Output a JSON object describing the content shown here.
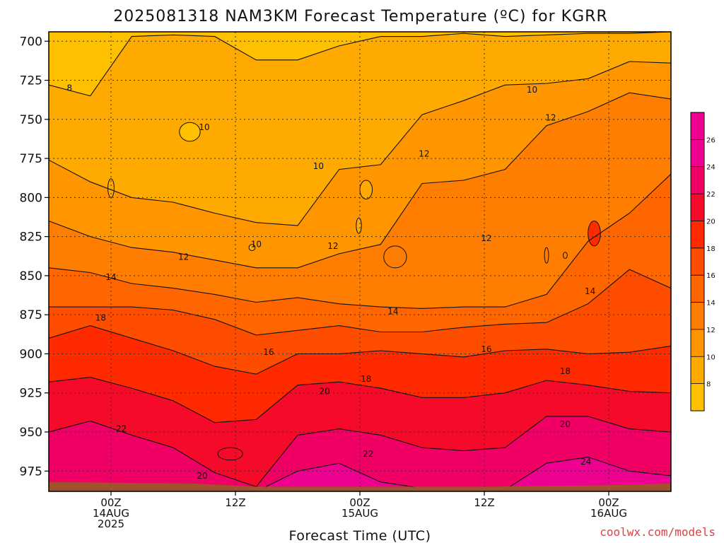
{
  "title": "2025081318 NAM3KM Forecast Temperature (ºC) for KGRR",
  "credit": "coolwx.com/models",
  "colors": {
    "bands": [
      "#ffc000",
      "#ffaa00",
      "#ff9600",
      "#ff7d00",
      "#ff6600",
      "#ff4d00",
      "#ff2a00",
      "#f50a2a",
      "#f00064",
      "#ee0090"
    ],
    "ground": "#a0522d"
  },
  "chart_data": {
    "type": "heatmap",
    "subtype": "time-pressure contour",
    "title": "2025081318 NAM3KM Forecast Temperature (ºC) for KGRR",
    "xlabel": "Forecast Time (UTC)",
    "ylabel": "",
    "x_range_hours": [
      -6,
      54
    ],
    "y_range_hPa": [
      694,
      988
    ],
    "yticks": [
      700,
      725,
      750,
      775,
      800,
      825,
      850,
      875,
      900,
      925,
      950,
      975
    ],
    "xticks": [
      {
        "hour": 0,
        "lines": [
          "00Z",
          "14AUG",
          "2025"
        ]
      },
      {
        "hour": 12,
        "lines": [
          "12Z"
        ]
      },
      {
        "hour": 24,
        "lines": [
          "00Z",
          "15AUG"
        ]
      },
      {
        "hour": 36,
        "lines": [
          "12Z"
        ]
      },
      {
        "hour": 48,
        "lines": [
          "00Z",
          "16AUG"
        ]
      }
    ],
    "grid": true,
    "colorbar": {
      "position": "right",
      "min": 6,
      "max": 28,
      "step": 2,
      "ticks": [
        8,
        10,
        12,
        14,
        16,
        18,
        20,
        22,
        24,
        26
      ]
    },
    "levels": [
      8,
      10,
      12,
      14,
      16,
      18,
      20,
      22,
      24
    ],
    "columns": [
      {
        "hour": -6,
        "p": [
          728,
          776,
          815,
          845,
          870,
          890,
          918,
          950
        ]
      },
      {
        "hour": -2,
        "p": [
          735,
          790,
          825,
          848,
          870,
          882,
          915,
          943
        ]
      },
      {
        "hour": 2,
        "p": [
          697,
          800,
          832,
          855,
          870,
          890,
          922,
          952
        ]
      },
      {
        "hour": 6,
        "p": [
          696,
          803,
          835,
          858,
          872,
          898,
          930,
          960
        ]
      },
      {
        "hour": 10,
        "p": [
          697,
          810,
          840,
          862,
          878,
          908,
          944,
          976
        ]
      },
      {
        "hour": 14,
        "p": [
          712,
          816,
          845,
          867,
          888,
          913,
          942,
          985,
          988
        ]
      },
      {
        "hour": 18,
        "p": [
          712,
          818,
          845,
          864,
          885,
          900,
          920,
          952,
          975
        ]
      },
      {
        "hour": 22,
        "p": [
          703,
          782,
          836,
          868,
          882,
          900,
          918,
          948,
          970
        ]
      },
      {
        "hour": 26,
        "p": [
          697,
          779,
          830,
          870,
          886,
          898,
          922,
          952,
          982
        ]
      },
      {
        "hour": 30,
        "p": [
          697,
          747,
          791,
          871,
          886,
          900,
          928,
          960,
          986
        ]
      },
      {
        "hour": 34,
        "p": [
          695,
          738,
          789,
          870,
          883,
          902,
          928,
          962,
          987
        ]
      },
      {
        "hour": 38,
        "p": [
          697,
          728,
          782,
          870,
          881,
          898,
          925,
          960,
          987,
          988
        ]
      },
      {
        "hour": 42,
        "p": [
          696,
          727,
          754,
          862,
          880,
          897,
          917,
          940,
          970,
          983
        ]
      },
      {
        "hour": 46,
        "p": [
          695,
          724,
          745,
          828,
          868,
          900,
          920,
          940,
          966,
          978
        ]
      },
      {
        "hour": 50,
        "p": [
          695,
          713,
          733,
          810,
          846,
          899,
          924,
          948,
          975,
          985
        ]
      },
      {
        "hour": 54,
        "p": [
          694,
          714,
          737,
          785,
          858,
          895,
          925,
          950,
          978,
          988
        ]
      }
    ],
    "contour_labels": [
      {
        "value": "8",
        "hour": -4.0,
        "p": 730
      },
      {
        "value": "10",
        "hour": 9.0,
        "p": 755
      },
      {
        "value": "10",
        "hour": 20.0,
        "p": 780
      },
      {
        "value": "10",
        "hour": 14.0,
        "p": 830
      },
      {
        "value": "10",
        "hour": 40.6,
        "p": 731
      },
      {
        "value": "12",
        "hour": 7.0,
        "p": 838
      },
      {
        "value": "12",
        "hour": 21.4,
        "p": 831
      },
      {
        "value": "12",
        "hour": 30.2,
        "p": 772
      },
      {
        "value": "12",
        "hour": 36.2,
        "p": 826
      },
      {
        "value": "12",
        "hour": 42.4,
        "p": 749
      },
      {
        "value": "14",
        "hour": 0.0,
        "p": 851
      },
      {
        "value": "14",
        "hour": 27.2,
        "p": 873
      },
      {
        "value": "14",
        "hour": 46.2,
        "p": 860
      },
      {
        "value": "16",
        "hour": 15.2,
        "p": 899
      },
      {
        "value": "16",
        "hour": 36.2,
        "p": 897
      },
      {
        "value": "18",
        "hour": -1.0,
        "p": 877
      },
      {
        "value": "18",
        "hour": 24.6,
        "p": 916
      },
      {
        "value": "18",
        "hour": 43.8,
        "p": 911
      },
      {
        "value": "20",
        "hour": 20.6,
        "p": 924
      },
      {
        "value": "20",
        "hour": 8.8,
        "p": 978
      },
      {
        "value": "20",
        "hour": 43.8,
        "p": 945
      },
      {
        "value": "22",
        "hour": 1.0,
        "p": 948
      },
      {
        "value": "22",
        "hour": 24.8,
        "p": 964
      },
      {
        "value": "24",
        "hour": 45.8,
        "p": 969
      }
    ],
    "islands": [
      {
        "hour": 7.6,
        "p": 758,
        "rx_h": 1.0,
        "ry_p": 6,
        "band": 0
      },
      {
        "hour": 0.0,
        "p": 794,
        "rx_h": 0.3,
        "ry_p": 6,
        "band": 1
      },
      {
        "hour": 13.6,
        "p": 832,
        "rx_h": 0.3,
        "ry_p": 2,
        "band": 1
      },
      {
        "hour": 24.6,
        "p": 795,
        "rx_h": 0.6,
        "ry_p": 6,
        "band": 1
      },
      {
        "hour": 23.9,
        "p": 818,
        "rx_h": 0.25,
        "ry_p": 5,
        "band": 1
      },
      {
        "hour": 27.4,
        "p": 838,
        "rx_h": 1.1,
        "ry_p": 7,
        "band": 3
      },
      {
        "hour": 42.0,
        "p": 837,
        "rx_h": 0.2,
        "ry_p": 5,
        "band": 3
      },
      {
        "hour": 43.8,
        "p": 837,
        "rx_h": 0.2,
        "ry_p": 2,
        "band": 3
      },
      {
        "hour": 46.6,
        "p": 823,
        "rx_h": 0.6,
        "ry_p": 8,
        "band": 6
      },
      {
        "hour": 11.5,
        "p": 964,
        "rx_h": 1.2,
        "ry_p": 4,
        "band": 7
      }
    ],
    "ground": [
      {
        "hour": -6,
        "p": 982
      },
      {
        "hour": 8,
        "p": 983
      },
      {
        "hour": 14,
        "p": 985
      },
      {
        "hour": 24,
        "p": 985
      },
      {
        "hour": 36,
        "p": 985
      },
      {
        "hour": 48,
        "p": 984
      },
      {
        "hour": 54,
        "p": 983
      }
    ]
  }
}
